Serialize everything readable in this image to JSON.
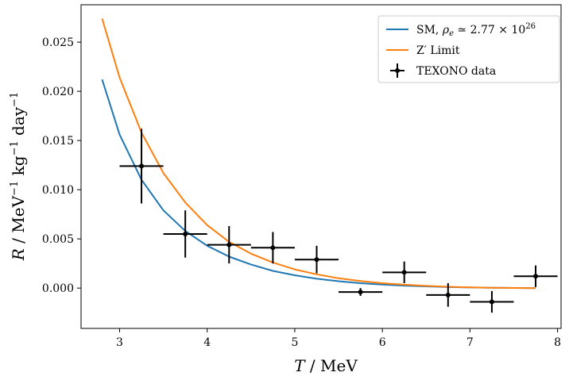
{
  "chart_data": {
    "type": "line",
    "title": "",
    "xlabel_var": "T",
    "xlabel_unit": "/ MeV",
    "ylabel": "R / MeV⁻¹ kg⁻¹ day⁻¹",
    "xlim": [
      2.56,
      8.04
    ],
    "ylim": [
      -0.0041,
      0.0288
    ],
    "xticks": [
      3,
      4,
      5,
      6,
      7,
      8
    ],
    "xtick_labels": [
      "3",
      "4",
      "5",
      "6",
      "7",
      "8"
    ],
    "yticks": [
      0.0,
      0.005,
      0.01,
      0.015,
      0.02,
      0.025
    ],
    "ytick_labels": [
      "0.000",
      "0.005",
      "0.010",
      "0.015",
      "0.020",
      "0.025"
    ],
    "grid": false,
    "legend_position": "top-right",
    "series": [
      {
        "name": "SM, ρe ≃ 2.77 × 10²⁶",
        "kind": "line",
        "color": "#1f77b4",
        "x": [
          2.8,
          3.0,
          3.25,
          3.5,
          3.75,
          4.0,
          4.25,
          4.5,
          4.75,
          5.0,
          5.25,
          5.5,
          5.75,
          6.0,
          6.25,
          6.5,
          6.75,
          7.0,
          7.25,
          7.5,
          7.75
        ],
        "y": [
          0.0212,
          0.0156,
          0.011,
          0.0079,
          0.0058,
          0.0043,
          0.0032,
          0.0024,
          0.00175,
          0.0013,
          0.00095,
          0.0007,
          0.0005,
          0.00035,
          0.00025,
          0.00017,
          0.0001,
          6e-05,
          3e-05,
          1e-05,
          0.0
        ]
      },
      {
        "name": "Z′ Limit",
        "kind": "line",
        "color": "#ff7f0e",
        "x": [
          2.8,
          3.0,
          3.25,
          3.5,
          3.75,
          4.0,
          4.25,
          4.5,
          4.75,
          5.0,
          5.25,
          5.5,
          5.75,
          6.0,
          6.25,
          6.5,
          6.75,
          7.0,
          7.25,
          7.5,
          7.75
        ],
        "y": [
          0.0274,
          0.0214,
          0.0158,
          0.0117,
          0.0087,
          0.0064,
          0.0047,
          0.0035,
          0.0026,
          0.0019,
          0.0014,
          0.001,
          0.00072,
          0.0005,
          0.00034,
          0.00022,
          0.00013,
          7e-05,
          3e-05,
          1e-05,
          0.0
        ]
      },
      {
        "name": "TEXONO data",
        "kind": "errorbar",
        "color": "#000000",
        "x": [
          3.25,
          3.75,
          4.25,
          4.75,
          5.25,
          5.75,
          6.25,
          6.75,
          7.25,
          7.75
        ],
        "y": [
          0.0124,
          0.0055,
          0.0044,
          0.0041,
          0.0029,
          -0.0004,
          0.0016,
          -0.0007,
          -0.0014,
          0.0012
        ],
        "xerr": [
          0.25,
          0.25,
          0.25,
          0.25,
          0.25,
          0.25,
          0.25,
          0.25,
          0.25,
          0.25
        ],
        "yerr": [
          0.0038,
          0.0024,
          0.0019,
          0.0016,
          0.0014,
          0.0004,
          0.0011,
          0.0012,
          0.0011,
          0.0011
        ]
      }
    ],
    "legend": [
      {
        "label_main": "SM, ",
        "label_math": "ρ",
        "label_sub": "e",
        "label_rest": " ≃ 2.77 × 10",
        "label_sup": "26"
      },
      {
        "label_main": "Z′ Limit"
      },
      {
        "label_main": "TEXONO data"
      }
    ]
  }
}
